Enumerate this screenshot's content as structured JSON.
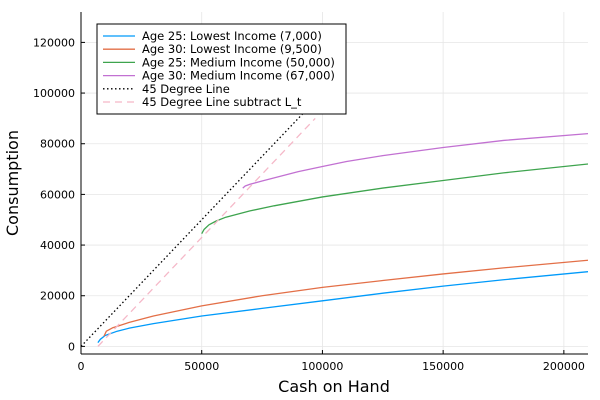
{
  "chart_data": {
    "type": "line",
    "title": "",
    "xlabel": "Cash on Hand",
    "ylabel": "Consumption",
    "xlim": [
      0,
      210000
    ],
    "ylim": [
      -3000,
      132000
    ],
    "xticks": [
      0,
      50000,
      100000,
      150000,
      200000
    ],
    "xtick_labels": [
      "0",
      "50000",
      "100000",
      "150000",
      "200000"
    ],
    "yticks": [
      0,
      20000,
      40000,
      60000,
      80000,
      100000,
      120000
    ],
    "ytick_labels": [
      "0",
      "20000",
      "40000",
      "60000",
      "80000",
      "100000",
      "120000"
    ],
    "grid": true,
    "legend_position": "top-left",
    "series": [
      {
        "name": "Age 25: Lowest Income (7,000)",
        "color": "#009AFA",
        "dash": "solid",
        "x": [
          7000,
          8000,
          10000,
          15000,
          20000,
          30000,
          50000,
          75000,
          100000,
          125000,
          150000,
          175000,
          210000
        ],
        "y": [
          1500,
          2800,
          4300,
          6000,
          7200,
          9000,
          12000,
          15000,
          18000,
          21000,
          23800,
          26300,
          29500
        ]
      },
      {
        "name": "Age 30: Lowest Income (9,500)",
        "color": "#E36F47",
        "dash": "solid",
        "x": [
          9500,
          10500,
          13000,
          20000,
          30000,
          50000,
          75000,
          100000,
          125000,
          150000,
          175000,
          210000
        ],
        "y": [
          4000,
          6000,
          7300,
          9500,
          12000,
          16000,
          20000,
          23300,
          26000,
          28600,
          31000,
          34000
        ]
      },
      {
        "name": "Age 25: Medium Income (50,000)",
        "color": "#3EA44E",
        "dash": "solid",
        "x": [
          50000,
          51000,
          53000,
          56000,
          60000,
          70000,
          80000,
          100000,
          125000,
          150000,
          175000,
          210000
        ],
        "y": [
          44500,
          46200,
          48000,
          49500,
          51000,
          53500,
          55500,
          59000,
          62500,
          65500,
          68500,
          72000
        ]
      },
      {
        "name": "Age 30: Medium Income (67,000)",
        "color": "#C271D2",
        "dash": "solid",
        "x": [
          67000,
          68000,
          70000,
          75000,
          80000,
          90000,
          100000,
          110000,
          125000,
          150000,
          175000,
          210000
        ],
        "y": [
          62500,
          63300,
          64000,
          65300,
          66500,
          69000,
          71000,
          73000,
          75300,
          78500,
          81300,
          84000
        ]
      },
      {
        "name": "45 Degree Line",
        "color": "#000000",
        "dash": "dotted",
        "x": [
          0,
          92000
        ],
        "y": [
          0,
          92000
        ]
      },
      {
        "name": "45 Degree Line subtract L_t",
        "color": "#F5B8C8",
        "dash": "dashed",
        "x": [
          7000,
          97000
        ],
        "y": [
          0,
          90000
        ]
      }
    ]
  }
}
